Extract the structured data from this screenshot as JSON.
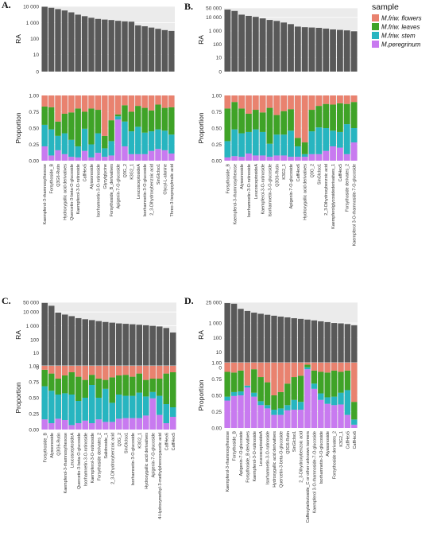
{
  "legend": {
    "title": "sample",
    "items": [
      {
        "label": "M.friw. flowers",
        "color": "#E9826F"
      },
      {
        "label": "M.friw. leaves",
        "color": "#3FA327"
      },
      {
        "label": "M.friw. stem",
        "color": "#27B5C0"
      },
      {
        "label": "M.peregrinum",
        "color": "#C87AF0"
      }
    ]
  },
  "colors": {
    "bar": "#595959",
    "panel_bg": "#EBEBEB",
    "grid": "#FFFFFF"
  },
  "chart_data": [
    {
      "panel": "A.",
      "type": "bar",
      "ylabel_top": "RA",
      "ylabel_bottom": "Proportion",
      "yticks_top": [
        "10 000",
        "1 000",
        "100",
        "10",
        "0"
      ],
      "yticks_bottom": [
        "1.00",
        "0.75",
        "0.50",
        "0.25",
        "0.00"
      ],
      "log_scale": true,
      "categories": [
        "Kaempferol-3-rhamnosylhexose",
        "Forsythoside_B",
        "Q3G6-Rutin",
        "Hydroxygallic acid derivatives",
        "Quercetin-3-beta-O-glucoside",
        "Kaempferol-3-O-rutinoside",
        "CaffHex5",
        "Alyssonoside",
        "Isorhamnetin-3-O-rutinoside",
        "Glycylglycine",
        "Forsythoside_B_derivatives",
        "Apigenin-7-O-glucoside",
        "Q3G_2",
        "K3G2_1",
        "LeucosceptosideA",
        "Isorhamnetin-3-O-glucoside",
        "2_3-Dihydroxybenzoic acid",
        "SinGlcIso1",
        "Glycyl-L-alanine",
        "Threo-3-Isopropylmalic acid"
      ],
      "values": [
        9500,
        8200,
        6800,
        5600,
        4300,
        3100,
        2500,
        2000,
        1700,
        1550,
        1450,
        1300,
        1200,
        1150,
        680,
        600,
        500,
        420,
        350,
        310
      ],
      "proportions": [
        [
          0.17,
          0.28,
          0.33,
          0.22
        ],
        [
          0.18,
          0.34,
          0.4,
          0.08
        ],
        [
          0.4,
          0.22,
          0.22,
          0.16
        ],
        [
          0.28,
          0.3,
          0.32,
          0.1
        ],
        [
          0.26,
          0.42,
          0.26,
          0.06
        ],
        [
          0.2,
          0.58,
          0.17,
          0.05
        ],
        [
          0.25,
          0.26,
          0.34,
          0.15
        ],
        [
          0.2,
          0.55,
          0.2,
          0.05
        ],
        [
          0.22,
          0.36,
          0.3,
          0.12
        ],
        [
          0.62,
          0.19,
          0.13,
          0.06
        ],
        [
          0.38,
          0.32,
          0.22,
          0.08
        ],
        [
          0.29,
          0.03,
          0.05,
          0.63
        ],
        [
          0.15,
          0.25,
          0.38,
          0.22
        ],
        [
          0.25,
          0.3,
          0.35,
          0.1
        ],
        [
          0.16,
          0.32,
          0.42,
          0.1
        ],
        [
          0.19,
          0.38,
          0.33,
          0.1
        ],
        [
          0.23,
          0.32,
          0.3,
          0.15
        ],
        [
          0.14,
          0.38,
          0.3,
          0.18
        ],
        [
          0.19,
          0.35,
          0.3,
          0.16
        ],
        [
          0.18,
          0.42,
          0.29,
          0.11
        ]
      ]
    },
    {
      "panel": "B.",
      "type": "bar",
      "ylabel_top": "RA",
      "ylabel_bottom": "Proportion",
      "yticks_top": [
        "50 000",
        "10 000",
        "1 000",
        "100",
        "10",
        "0"
      ],
      "yticks_bottom": [
        "1.00",
        "0.75",
        "0.50",
        "0.25",
        "0.00"
      ],
      "log_scale": true,
      "categories": [
        "Forsythoside_B",
        "Kaempferol-3-rhamnosylhexose",
        "Alyssonoside",
        "Isorhamnetin-3-O-rutinoside",
        "LeucosceptosideA",
        "Kaempferol-3-O-rutinoside",
        "Isorhamnetin-3-O-glucoside",
        "Q3G6-Rutin",
        "K3G2_1",
        "Apigenin-7-O-glucoside",
        "CaffHex6",
        "Hydroxygallic acid derivatives",
        "Q3G_2",
        "SinGlcIso1",
        "2_3-Dihydroxybenzoic acid",
        "Kaempferolglycosidederivatives_1",
        "CaffHex5",
        "Forsythoside derivates_2",
        "Kaempferol 3-O-rhamnoside-7-O-glucoside"
      ],
      "values": [
        38000,
        30000,
        16000,
        13000,
        11000,
        8500,
        6500,
        5500,
        4200,
        3200,
        2100,
        1900,
        1800,
        1700,
        1500,
        1300,
        1200,
        1100,
        950
      ],
      "proportions": [
        [
          0.2,
          0.5,
          0.25,
          0.05
        ],
        [
          0.1,
          0.42,
          0.41,
          0.07
        ],
        [
          0.2,
          0.38,
          0.36,
          0.06
        ],
        [
          0.28,
          0.28,
          0.33,
          0.11
        ],
        [
          0.22,
          0.3,
          0.4,
          0.08
        ],
        [
          0.26,
          0.3,
          0.36,
          0.08
        ],
        [
          0.19,
          0.55,
          0.2,
          0.06
        ],
        [
          0.3,
          0.3,
          0.32,
          0.08
        ],
        [
          0.24,
          0.36,
          0.32,
          0.08
        ],
        [
          0.21,
          0.33,
          0.4,
          0.06
        ],
        [
          0.65,
          0.13,
          0.16,
          0.06
        ],
        [
          0.72,
          0.18,
          0.04,
          0.06
        ],
        [
          0.22,
          0.33,
          0.35,
          0.1
        ],
        [
          0.16,
          0.33,
          0.41,
          0.1
        ],
        [
          0.13,
          0.37,
          0.35,
          0.15
        ],
        [
          0.14,
          0.4,
          0.24,
          0.22
        ],
        [
          0.12,
          0.44,
          0.24,
          0.2
        ],
        [
          0.13,
          0.31,
          0.46,
          0.1
        ],
        [
          0.1,
          0.4,
          0.22,
          0.28
        ]
      ]
    },
    {
      "panel": "C.",
      "type": "bar",
      "ylabel_top": "RA",
      "ylabel_bottom": "Proportion",
      "yticks_top": [
        "50 000",
        "10 000",
        "1 000",
        "100",
        "10",
        "0"
      ],
      "yticks_bottom": [
        "1.00",
        "0.75",
        "0.50",
        "0.25",
        "0.00"
      ],
      "log_scale": true,
      "categories": [
        "Forsythoside_B",
        "Alyssonoside",
        "Q3G6-Rutin",
        "Kaempferol-3-rhamnosylhexose",
        "LeucosceptosideA",
        "Quercetin-3-beta-O-glucoside",
        "Isorhamnetin-3-O-rutinoside",
        "Kaempferol-3-O-rutinoside",
        "Forsythoside derivates_2",
        "Salidroside_1",
        "2_3-Dihydroxybenzoic acid",
        "Q3G_2",
        "SinGlcIso1",
        "Isorhamnetin-3-O-glucoside",
        "K3G2_1",
        "Hydroxygallic acid derivatives",
        "Apigenin-7-O-glucoside",
        "4-Hydroxymethyl-3-methylphenoxyacetic acid",
        "CaffHex6",
        "CaffHex5"
      ],
      "values": [
        45000,
        28000,
        9000,
        6500,
        5000,
        3600,
        3000,
        2600,
        2200,
        1900,
        1700,
        1500,
        1400,
        1300,
        1200,
        1100,
        1000,
        900,
        700,
        330
      ],
      "proportions": [
        [
          0.06,
          0.26,
          0.52,
          0.16
        ],
        [
          0.12,
          0.27,
          0.51,
          0.1
        ],
        [
          0.2,
          0.25,
          0.38,
          0.17
        ],
        [
          0.15,
          0.28,
          0.42,
          0.15
        ],
        [
          0.1,
          0.35,
          0.48,
          0.07
        ],
        [
          0.17,
          0.38,
          0.35,
          0.1
        ],
        [
          0.22,
          0.28,
          0.36,
          0.14
        ],
        [
          0.14,
          0.16,
          0.6,
          0.1
        ],
        [
          0.2,
          0.3,
          0.34,
          0.16
        ],
        [
          0.22,
          0.14,
          0.52,
          0.12
        ],
        [
          0.18,
          0.4,
          0.3,
          0.12
        ],
        [
          0.15,
          0.3,
          0.38,
          0.17
        ],
        [
          0.14,
          0.33,
          0.35,
          0.18
        ],
        [
          0.17,
          0.3,
          0.35,
          0.18
        ],
        [
          0.12,
          0.3,
          0.4,
          0.18
        ],
        [
          0.22,
          0.26,
          0.3,
          0.22
        ],
        [
          0.2,
          0.21,
          0.1,
          0.49
        ],
        [
          0.2,
          0.27,
          0.3,
          0.23
        ],
        [
          0.12,
          0.48,
          0.3,
          0.1
        ],
        [
          0.1,
          0.55,
          0.15,
          0.2
        ]
      ]
    },
    {
      "panel": "D.",
      "type": "bar",
      "ylabel_top": "RA",
      "ylabel_bottom": "Proportion",
      "yticks_top": [
        "25 000",
        "1 000",
        "100",
        "10",
        "0"
      ],
      "yticks_bottom": [
        "1.00",
        "0.75",
        "0.50",
        "0.25",
        "0.00"
      ],
      "log_scale": true,
      "categories": [
        "Kaempferol-3-rhamnosylhexose",
        "Forsythoside_B",
        "Apigenin-7-O-glucoside",
        "Forsythoside_B derivatives",
        "Kaempferol-3-O-rutinoside",
        "LeucosceptosideA",
        "Isorhamnetin-3-O-rutinoside",
        "Hydroxygallic acid derivatives",
        "Quercetin-3-beta-O-glucoside",
        "Q3G6-Rutin",
        "SinGlcIso1",
        "2_3-Dihydroxybenzoic acid",
        "Caffeoylarbutoside_C or other unknown isomers",
        "Kaempferol 3-O-rhamnoside-7-O-glucoside",
        "Isorhamnetin-3-O-glucoside",
        "Alyssonoside",
        "Forsythoside derivates_2",
        "K3G2_1",
        "CaffHex5",
        "CaffHex6"
      ],
      "values": [
        22000,
        20000,
        9000,
        6500,
        5000,
        4200,
        3600,
        3100,
        2700,
        2400,
        2100,
        1900,
        1700,
        1500,
        1300,
        1150,
        1000,
        950,
        850,
        700
      ],
      "proportions": [
        [
          0.14,
          0.38,
          0.06,
          0.42
        ],
        [
          0.15,
          0.3,
          0.06,
          0.49
        ],
        [
          0.12,
          0.32,
          0.06,
          0.5
        ],
        [
          0.35,
          0.0,
          0.03,
          0.62
        ],
        [
          0.1,
          0.36,
          0.06,
          0.48
        ],
        [
          0.22,
          0.37,
          0.06,
          0.35
        ],
        [
          0.3,
          0.35,
          0.05,
          0.3
        ],
        [
          0.5,
          0.22,
          0.08,
          0.2
        ],
        [
          0.45,
          0.25,
          0.1,
          0.2
        ],
        [
          0.32,
          0.33,
          0.08,
          0.27
        ],
        [
          0.22,
          0.35,
          0.15,
          0.28
        ],
        [
          0.2,
          0.4,
          0.12,
          0.28
        ],
        [
          0.03,
          0.04,
          0.03,
          0.9
        ],
        [
          0.12,
          0.2,
          0.08,
          0.6
        ],
        [
          0.14,
          0.33,
          0.1,
          0.43
        ],
        [
          0.15,
          0.38,
          0.1,
          0.37
        ],
        [
          0.12,
          0.4,
          0.13,
          0.35
        ],
        [
          0.14,
          0.32,
          0.18,
          0.36
        ],
        [
          0.12,
          0.3,
          0.38,
          0.2
        ],
        [
          0.6,
          0.27,
          0.08,
          0.05
        ]
      ]
    }
  ]
}
